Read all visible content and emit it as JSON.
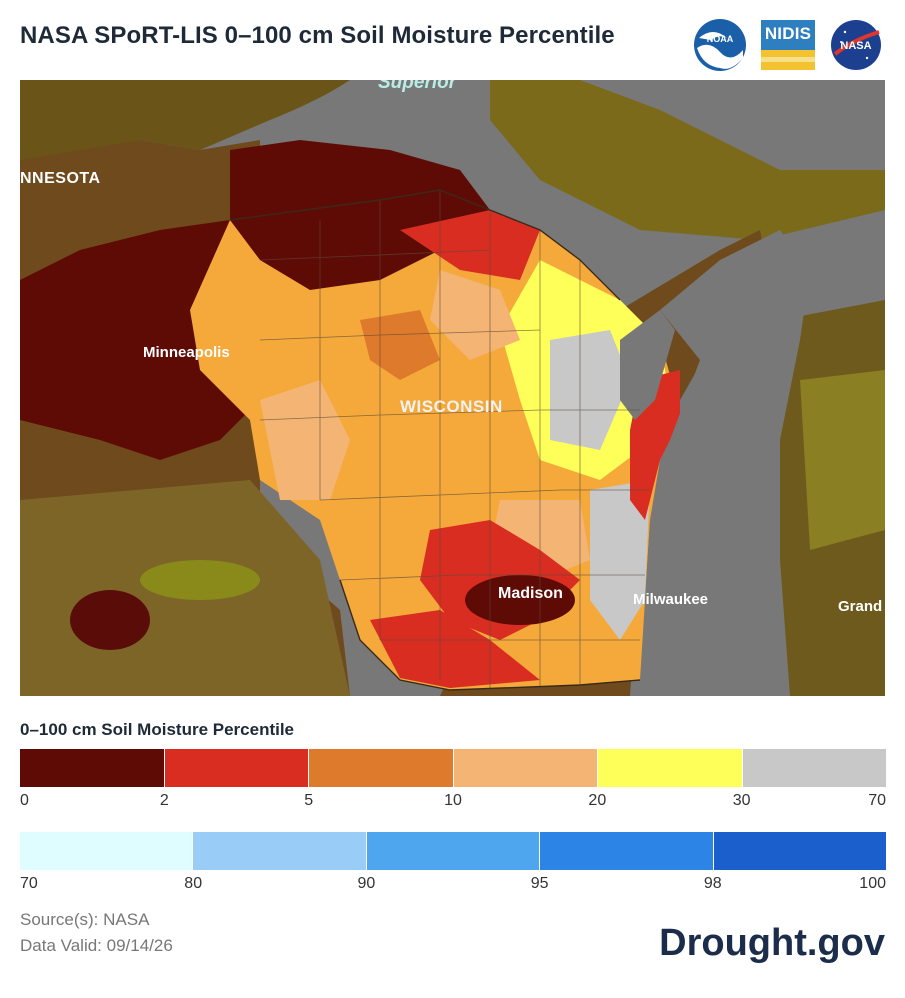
{
  "header": {
    "title": "NASA SPoRT-LIS 0–100 cm Soil Moisture Percentile",
    "logos": [
      {
        "name": "noaa-logo",
        "text": "NOAA"
      },
      {
        "name": "nidis-logo",
        "text": "NIDIS"
      },
      {
        "name": "nasa-logo",
        "text": "NASA"
      }
    ]
  },
  "map": {
    "labels": {
      "superior": "Superior",
      "minnesota": "NNESOTA",
      "minneapolis": "Minneapolis",
      "wisconsin": "WISCONSIN",
      "madison": "Madison",
      "milwaukee": "Milwaukee",
      "grand": "Grand"
    },
    "colors": {
      "water": "#787878",
      "land_out": "#6e4a1c"
    }
  },
  "legend": {
    "title": "0–100 cm Soil Moisture Percentile",
    "dry": {
      "colors": [
        "#5e0b06",
        "#d92d22",
        "#dd7a2c",
        "#f4b574",
        "#ffff5a",
        "#c8c8c8"
      ],
      "ticks": [
        "0",
        "2",
        "5",
        "10",
        "20",
        "30",
        "70"
      ]
    },
    "wet": {
      "colors": [
        "#dffdff",
        "#99ccf6",
        "#4ea6ee",
        "#2b84e6",
        "#1a5fcb"
      ],
      "ticks": [
        "70",
        "80",
        "90",
        "95",
        "98",
        "100"
      ]
    }
  },
  "footer": {
    "source": "Source(s): NASA",
    "valid": "Data Valid: 09/14/26",
    "brand": "Drought.gov"
  }
}
